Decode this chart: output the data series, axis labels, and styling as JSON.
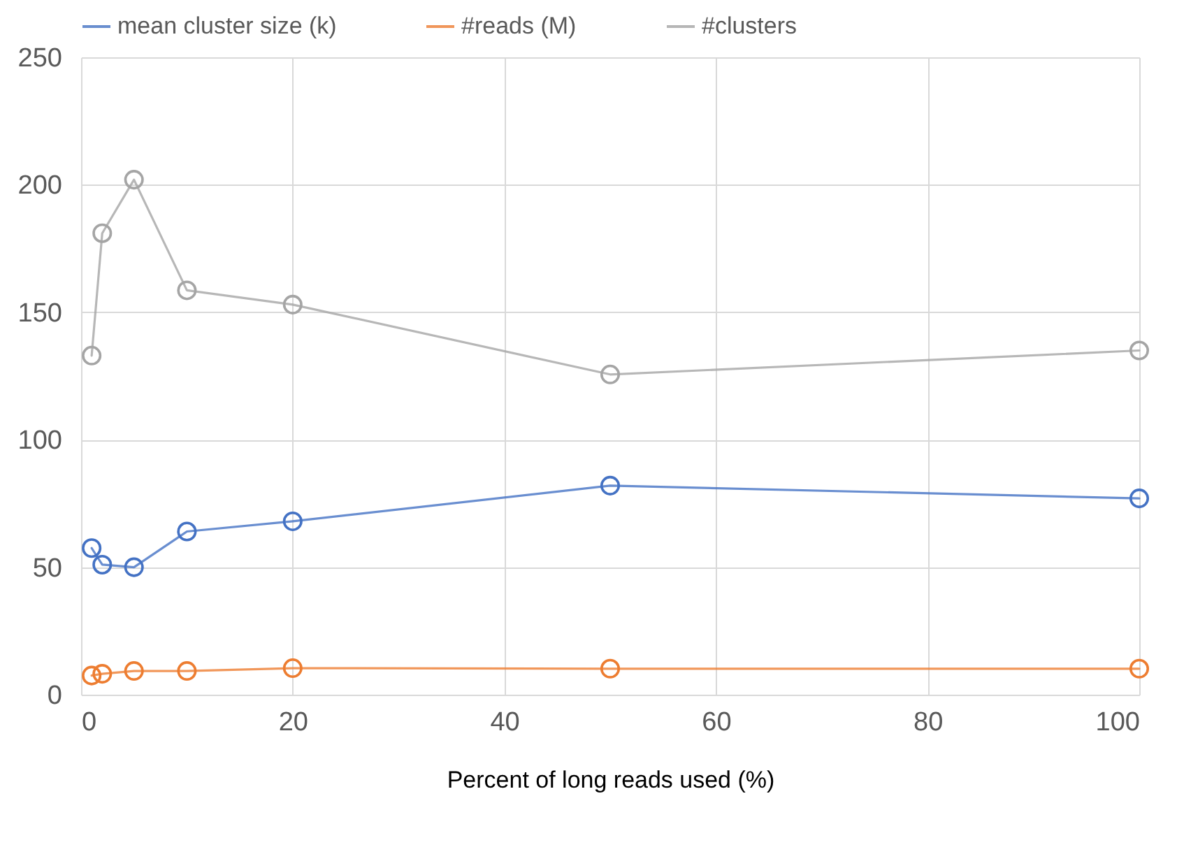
{
  "chart_data": {
    "type": "line",
    "xlabel": "Percent of long reads used (%)",
    "x": [
      1,
      2,
      5,
      10,
      20,
      50,
      100
    ],
    "series": [
      {
        "name": "mean cluster size (k)",
        "color": "#4472c4",
        "values": [
          57.5,
          51,
          50,
          64,
          68,
          82,
          77
        ]
      },
      {
        "name": "#reads (M)",
        "color": "#ed7d31",
        "values": [
          7.5,
          8.2,
          9.3,
          9.3,
          10.4,
          10.2,
          10.2
        ]
      },
      {
        "name": "#clusters",
        "color": "#a5a5a5",
        "values": [
          133,
          181,
          202,
          158.6,
          153,
          125.6,
          135
        ]
      }
    ],
    "xlim": [
      0,
      100
    ],
    "xticks": [
      0,
      20,
      40,
      60,
      80,
      100
    ],
    "ylim": [
      0,
      250
    ],
    "yticks": [
      0,
      50,
      100,
      150,
      200,
      250
    ],
    "grid": true,
    "legend": "top",
    "marker": "circle",
    "line_style": "solid"
  }
}
